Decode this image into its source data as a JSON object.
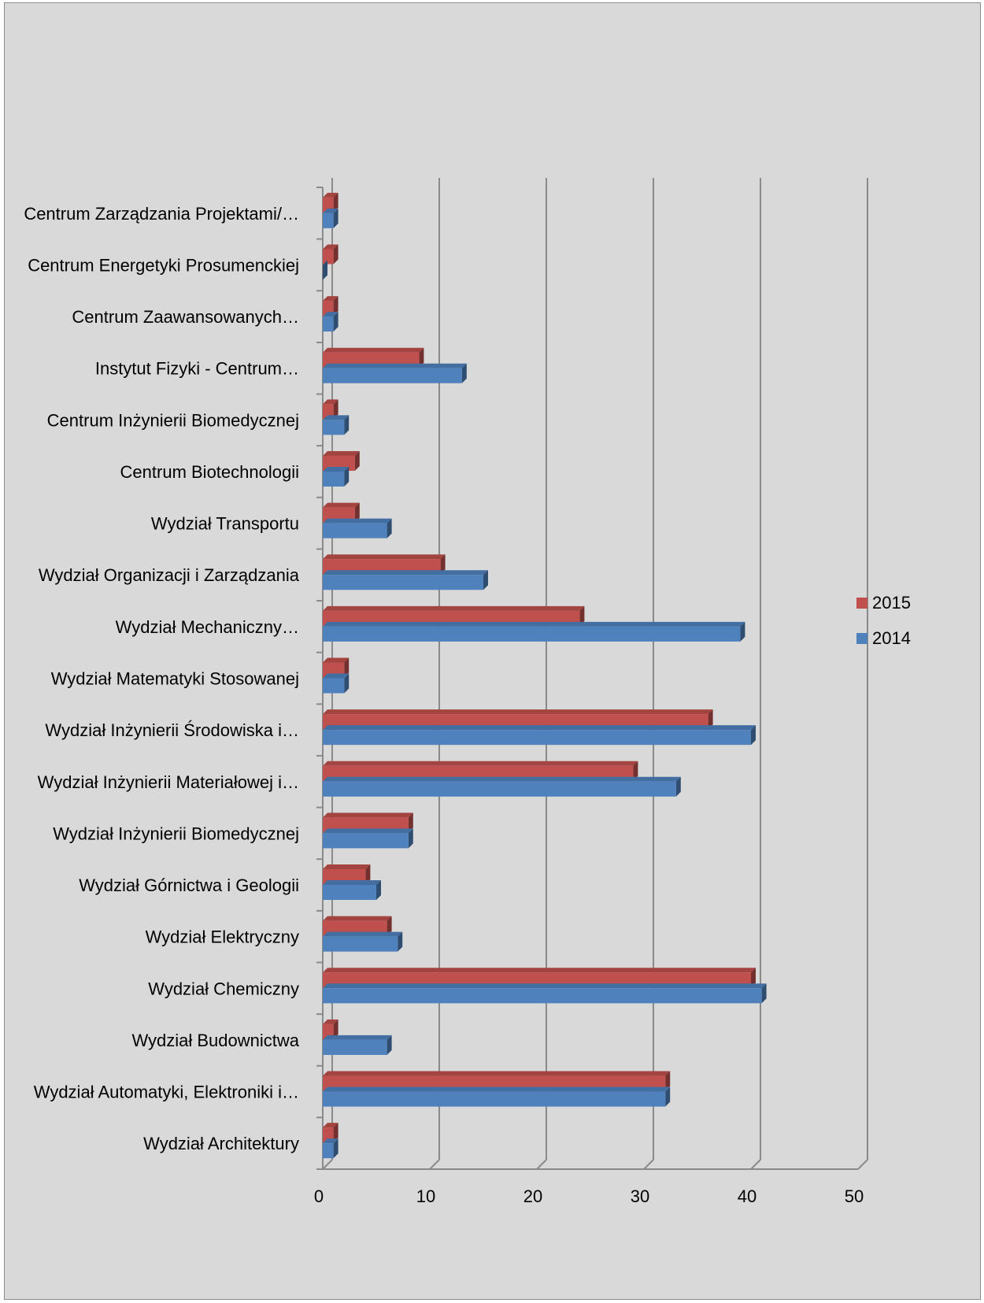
{
  "chart_data": {
    "type": "bar",
    "orientation": "horizontal",
    "categories": [
      "Wydział Architektury",
      "Wydział Automatyki, Elektroniki i…",
      "Wydział Budownictwa",
      "Wydział Chemiczny",
      "Wydział Elektryczny",
      "Wydział Górnictwa i Geologii",
      "Wydział Inżynierii Biomedycznej",
      "Wydział Inżynierii Materiałowej i…",
      "Wydział Inżynierii Środowiska i…",
      "Wydział Matematyki Stosowanej",
      "Wydział Mechaniczny…",
      "Wydział Organizacji i Zarządzania",
      "Wydział Transportu",
      "Centrum Biotechnologii",
      "Centrum Inżynierii Biomedycznej",
      "Instytut Fizyki - Centrum…",
      "Centrum Zaawansowanych…",
      "Centrum Energetyki Prosumenckiej",
      "Centrum Zarządzania Projektami/…"
    ],
    "series": [
      {
        "name": "2015",
        "color": "#c0504d",
        "values": [
          1,
          32,
          1,
          40,
          6,
          4,
          8,
          29,
          36,
          2,
          24,
          11,
          3,
          3,
          1,
          9,
          1,
          1,
          1
        ]
      },
      {
        "name": "2014",
        "color": "#4f81bd",
        "values": [
          1,
          32,
          6,
          41,
          7,
          5,
          8,
          33,
          40,
          2,
          39,
          15,
          6,
          2,
          2,
          13,
          1,
          0,
          1
        ]
      }
    ],
    "xlim": [
      0,
      50
    ],
    "x_ticks": [
      "0",
      "10",
      "20",
      "30",
      "40",
      "50"
    ],
    "grid": true,
    "legend_position": "right",
    "title": "",
    "xlabel": "",
    "ylabel": ""
  }
}
